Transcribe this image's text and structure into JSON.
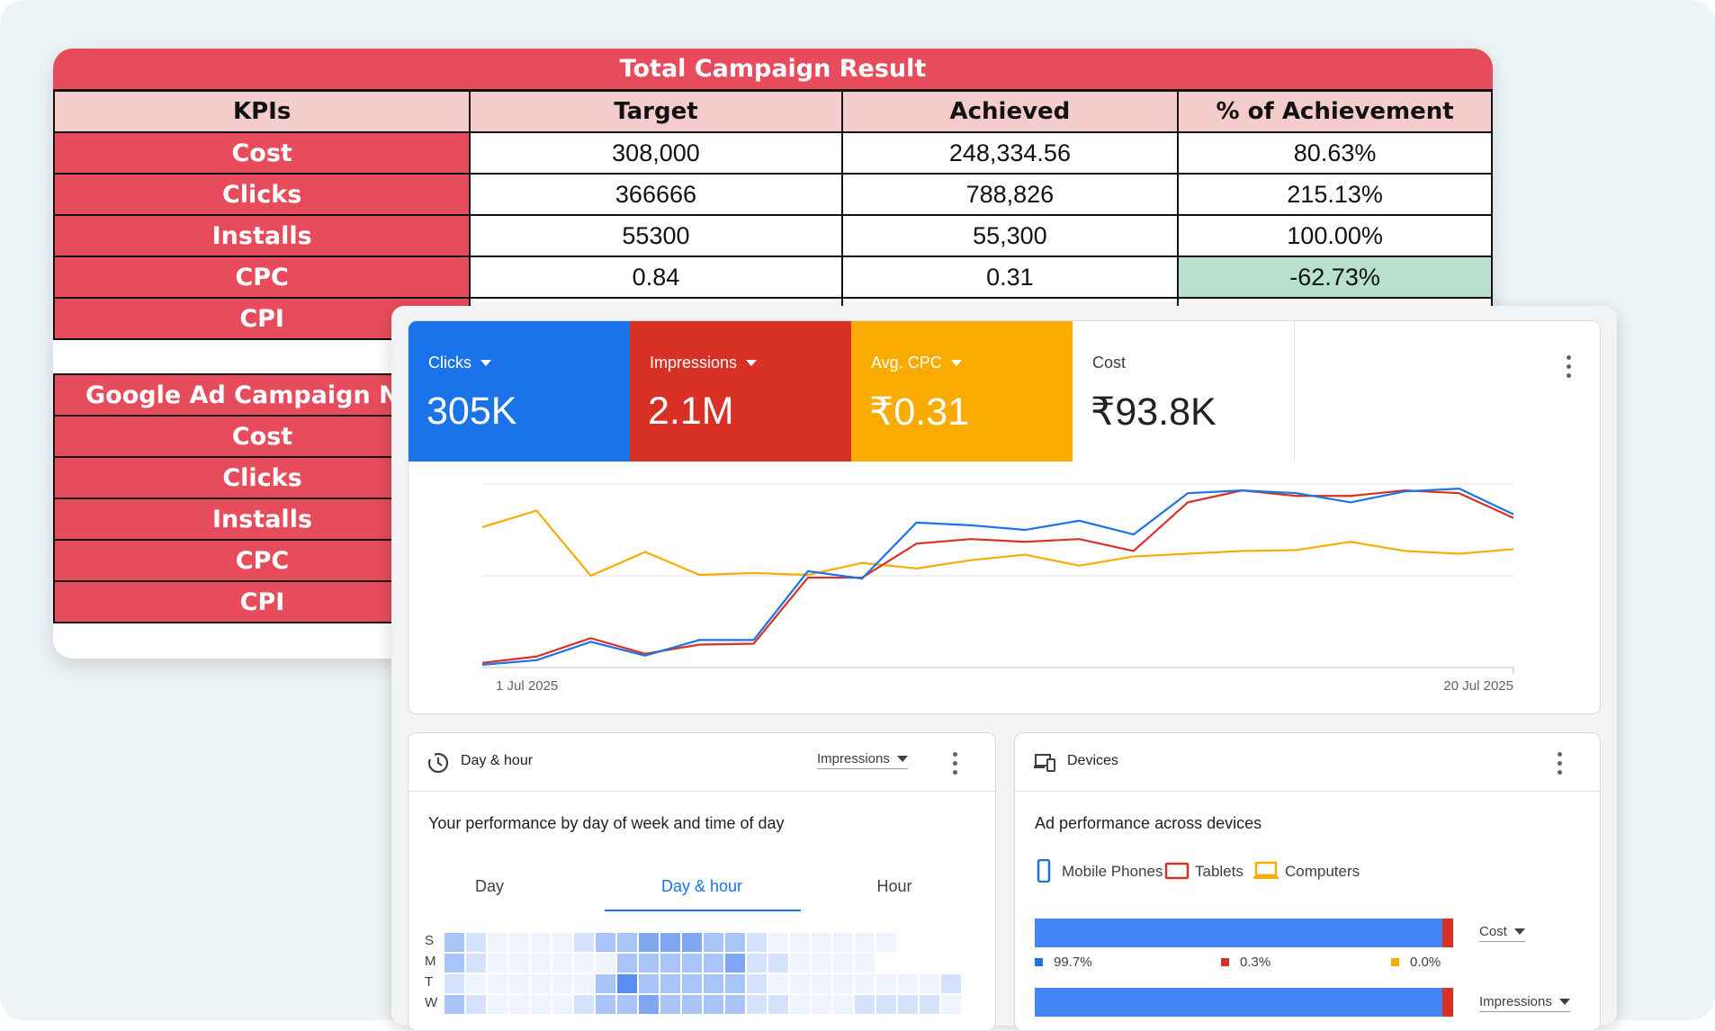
{
  "sheet": {
    "title": "Total Campaign Result",
    "headers": [
      "KPIs",
      "Target",
      "Achieved",
      "% of Achievement"
    ],
    "rows": [
      {
        "kpi": "Cost",
        "target": "308,000",
        "achieved": "248,334.56",
        "pct": "80.63%"
      },
      {
        "kpi": "Clicks",
        "target": "366666",
        "achieved": "788,826",
        "pct": "215.13%"
      },
      {
        "kpi": "Installs",
        "target": "55300",
        "achieved": "55,300",
        "pct": "100.00%"
      },
      {
        "kpi": "CPC",
        "target": "0.84",
        "achieved": "0.31",
        "pct": "-62.73%"
      },
      {
        "kpi": "CPI",
        "target": "",
        "achieved": "",
        "pct": ""
      }
    ],
    "table2_header": "Google Ad Campaign Na",
    "table2_rows": [
      "Cost",
      "Clicks",
      "Installs",
      "CPC",
      "CPI"
    ]
  },
  "ads": {
    "metrics": [
      {
        "label": "Clicks",
        "value": "305K",
        "color": "#1a73e8",
        "dropdown": true
      },
      {
        "label": "Impressions",
        "value": "2.1M",
        "color": "#d93025",
        "dropdown": true
      },
      {
        "label": "Avg. CPC",
        "value": "₹0.31",
        "color": "#f9ab00",
        "dropdown": true
      },
      {
        "label": "Cost",
        "value": "₹93.8K",
        "color": "#ffffff",
        "dropdown": false
      }
    ],
    "dayhour": {
      "title": "Day & hour",
      "metric": "Impressions",
      "subtitle": "Your performance by day of week and time of day",
      "tabs": [
        "Day",
        "Day & hour",
        "Hour"
      ],
      "active_tab": "Day & hour",
      "day_labels": [
        "S",
        "M",
        "T",
        "W"
      ]
    },
    "devices": {
      "title": "Devices",
      "subtitle": "Ad performance across devices",
      "legend": [
        "Mobile Phones",
        "Tablets",
        "Computers"
      ],
      "rows": [
        {
          "metric": "Cost",
          "mobile": "99.7%",
          "tablets": "0.3%",
          "computers": "0.0%"
        },
        {
          "metric": "Impressions"
        }
      ]
    }
  },
  "chart_data": {
    "type": "line",
    "x_start_label": "1 Jul 2025",
    "x_end_label": "20 Jul 2025",
    "x": [
      1,
      2,
      3,
      4,
      5,
      6,
      7,
      8,
      9,
      10,
      11,
      12,
      13,
      14,
      15,
      16,
      17,
      18,
      19,
      20
    ],
    "series": [
      {
        "name": "Clicks",
        "color": "#1a73e8",
        "values": [
          3,
          8,
          28,
          13,
          30,
          30,
          105,
          97,
          158,
          155,
          150,
          160,
          145,
          190,
          193,
          190,
          180,
          192,
          195,
          167
        ]
      },
      {
        "name": "Impressions",
        "color": "#d93025",
        "values": [
          5,
          12,
          32,
          15,
          25,
          26,
          98,
          98,
          135,
          140,
          137,
          140,
          127,
          180,
          193,
          187,
          187,
          193,
          190,
          163
        ]
      },
      {
        "name": "Avg. CPC",
        "color": "#f9ab00",
        "values": [
          153,
          171,
          100,
          126,
          101,
          103,
          101,
          114,
          108,
          117,
          123,
          111,
          121,
          124,
          127,
          128,
          137,
          127,
          124,
          129
        ]
      }
    ],
    "ylim": [
      0,
      200
    ],
    "grid": true
  }
}
